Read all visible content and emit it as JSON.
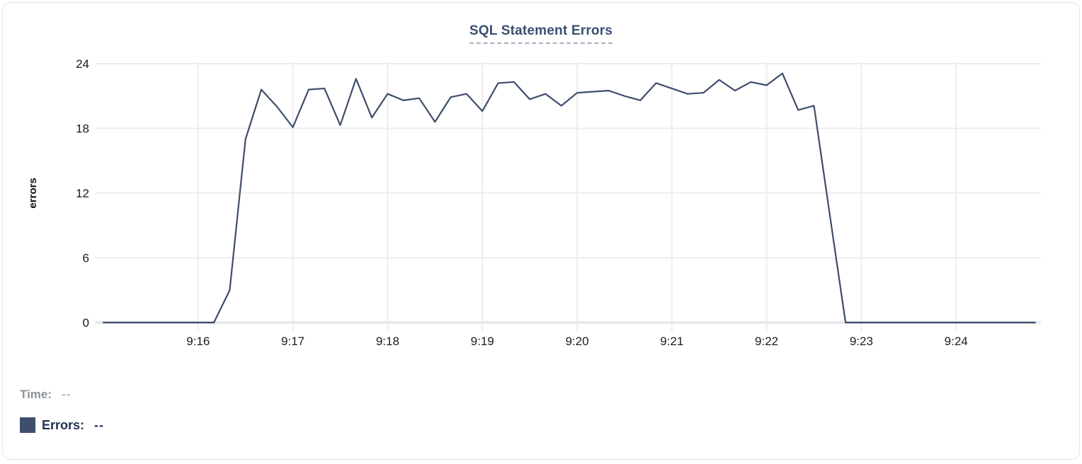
{
  "chart_data": {
    "type": "line",
    "title": "SQL Statement Errors",
    "xlabel": "",
    "ylabel": "errors",
    "ylim": [
      0,
      24
    ],
    "y_ticks": [
      0,
      6,
      12,
      18,
      24
    ],
    "x_tick_labels": [
      "9:16",
      "9:17",
      "9:18",
      "9:19",
      "9:20",
      "9:21",
      "9:22",
      "9:23",
      "9:24"
    ],
    "x_start": "9:15:00",
    "interval_seconds": 10,
    "grid": true,
    "legend_position": "bottom-left",
    "series": [
      {
        "name": "Errors",
        "color": "#3e4d6b",
        "values": [
          0,
          0,
          0,
          0,
          0,
          0,
          0,
          0,
          3,
          17,
          21.6,
          20,
          18.1,
          21.6,
          21.7,
          18.3,
          22.6,
          19,
          21.2,
          20.6,
          20.8,
          18.6,
          20.9,
          21.2,
          19.6,
          22.2,
          22.3,
          20.7,
          21.2,
          20.1,
          21.3,
          21.4,
          21.5,
          21,
          20.6,
          22.2,
          21.7,
          21.2,
          21.3,
          22.5,
          21.5,
          22.3,
          22,
          23.1,
          19.7,
          20.1,
          10,
          0,
          0,
          0,
          0,
          0,
          0,
          0,
          0,
          0,
          0,
          0,
          0,
          0
        ]
      }
    ]
  },
  "readout": {
    "time_label": "Time:",
    "time_value": "--",
    "errors_label": "Errors:",
    "errors_value": "--",
    "swatch_color": "#3f4e6d"
  },
  "colors": {
    "title": "#3a4e70",
    "title_underline": "#a6b0c3",
    "grid_line": "#ededf0",
    "zero_line": "#e9eaed",
    "tick_text": "#1b1c1e",
    "time_text": "#8c929b",
    "errors_text": "#1f2f55"
  }
}
